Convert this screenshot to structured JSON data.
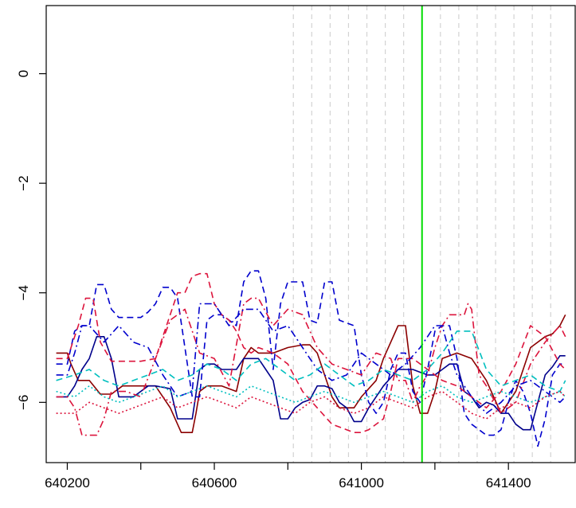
{
  "chart_data": {
    "type": "line",
    "title": "",
    "xlabel": "",
    "ylabel": "",
    "xlim": [
      640160,
      641560
    ],
    "ylim": [
      -7.1,
      1.2
    ],
    "x_ticks": [
      640200,
      640400,
      640600,
      640800,
      641000,
      641200,
      641400,
      641600
    ],
    "x_tick_labels": [
      {
        "value": 640200,
        "label": "640200"
      },
      {
        "value": 640600,
        "label": "640600"
      },
      {
        "value": 641000,
        "label": "641000"
      },
      {
        "value": 641400,
        "label": "641400"
      }
    ],
    "y_ticks": [
      {
        "value": 0,
        "label": "0"
      },
      {
        "value": -2,
        "label": "−2"
      },
      {
        "value": -4,
        "label": "−4"
      },
      {
        "value": -6,
        "label": "−6"
      }
    ],
    "grid": false,
    "reference_lines": {
      "color": "#d3d3d3",
      "x": [
        640815,
        640865,
        640915,
        640965,
        641015,
        641065,
        641115,
        641165,
        641215,
        641265,
        641315,
        641365,
        641415,
        641465,
        641515
      ]
    },
    "highlight_line": {
      "x": 641165,
      "color": "#00dd00"
    },
    "series": [
      {
        "color": "#8b0000",
        "dash": "solid",
        "x": [
          640170,
          640200,
          640210,
          640230,
          640260,
          640290,
          640320,
          640350,
          640400,
          640440,
          640480,
          640510,
          640520,
          640540,
          640550,
          640560,
          640580,
          640620,
          640660,
          640680,
          640700,
          640720,
          640760,
          640800,
          640840,
          640860,
          640880,
          640920,
          640940,
          640980,
          641000,
          641040,
          641060,
          641080,
          641100,
          641120,
          641140,
          641160,
          641180,
          641200,
          641220,
          641260,
          641300,
          641340,
          641380,
          641420,
          641460,
          641500,
          641520,
          641540,
          641555
        ],
        "y": [
          -5.1,
          -5.1,
          -5.3,
          -5.6,
          -5.6,
          -5.85,
          -5.85,
          -5.7,
          -5.7,
          -5.7,
          -6.1,
          -6.55,
          -6.55,
          -6.55,
          -6.2,
          -5.8,
          -5.7,
          -5.7,
          -5.8,
          -5.2,
          -5.0,
          -5.1,
          -5.1,
          -5.0,
          -4.95,
          -4.95,
          -5.1,
          -5.9,
          -6.1,
          -6.1,
          -5.9,
          -5.6,
          -5.2,
          -4.9,
          -4.6,
          -4.6,
          -5.7,
          -6.2,
          -6.2,
          -5.8,
          -5.2,
          -5.1,
          -5.2,
          -5.6,
          -6.2,
          -5.8,
          -5.0,
          -4.8,
          -4.75,
          -4.6,
          -4.4
        ]
      },
      {
        "color": "#00008b",
        "dash": "solid",
        "x": [
          640170,
          640200,
          640220,
          640240,
          640260,
          640280,
          640300,
          640320,
          640340,
          640380,
          640420,
          640440,
          640480,
          640500,
          640520,
          640540,
          640560,
          640580,
          640600,
          640620,
          640640,
          640660,
          640680,
          640720,
          640740,
          640760,
          640780,
          640800,
          640820,
          640840,
          640860,
          640880,
          640900,
          640920,
          640940,
          640960,
          640980,
          641000,
          641020,
          641060,
          641100,
          641140,
          641160,
          641180,
          641200,
          641220,
          641240,
          641260,
          641280,
          641300,
          641320,
          641340,
          641360,
          641380,
          641400,
          641420,
          641440,
          641460,
          641480,
          641500,
          641520,
          641540,
          641555
        ],
        "y": [
          -5.9,
          -5.9,
          -5.7,
          -5.4,
          -5.2,
          -4.8,
          -4.8,
          -5.2,
          -5.9,
          -5.9,
          -5.7,
          -5.7,
          -5.75,
          -6.3,
          -6.3,
          -6.3,
          -5.4,
          -5.3,
          -5.3,
          -5.4,
          -5.4,
          -5.4,
          -5.2,
          -5.2,
          -5.4,
          -5.6,
          -6.3,
          -6.3,
          -6.1,
          -6.0,
          -5.95,
          -5.7,
          -5.7,
          -5.75,
          -6.0,
          -6.1,
          -6.35,
          -6.35,
          -6.1,
          -5.7,
          -5.4,
          -5.4,
          -5.45,
          -5.5,
          -5.5,
          -5.4,
          -5.3,
          -5.3,
          -5.8,
          -5.9,
          -6.1,
          -6.0,
          -6.05,
          -6.2,
          -6.2,
          -6.4,
          -6.5,
          -6.5,
          -6.0,
          -5.5,
          -5.35,
          -5.15,
          -5.15
        ]
      },
      {
        "color": "#0000cd",
        "dash": "dashed",
        "x": [
          640170,
          640200,
          640220,
          640240,
          640260,
          640280,
          640300,
          640320,
          640340,
          640400,
          640420,
          640440,
          640460,
          640480,
          640500,
          640520,
          640540,
          640560,
          640580,
          640600,
          640620,
          640660,
          640680,
          640700,
          640720,
          640740,
          640760,
          640780,
          640800,
          640820,
          640840,
          640860,
          640880,
          640900,
          640920,
          640940,
          640960,
          640980,
          641000,
          641020,
          641040,
          641060,
          641080,
          641100,
          641120,
          641140,
          641160,
          641180,
          641200,
          641220,
          641240,
          641260,
          641280,
          641300,
          641320,
          641340,
          641360,
          641380,
          641400,
          641420,
          641440,
          641460,
          641480,
          641500,
          641520,
          641540,
          641555
        ],
        "y": [
          -5.3,
          -5.3,
          -4.7,
          -4.6,
          -4.6,
          -3.85,
          -3.85,
          -4.3,
          -4.45,
          -4.45,
          -4.35,
          -4.2,
          -3.9,
          -3.9,
          -4.1,
          -5.0,
          -5.9,
          -5.9,
          -4.5,
          -4.4,
          -4.4,
          -4.6,
          -3.8,
          -3.6,
          -3.6,
          -4.1,
          -5.4,
          -4.2,
          -3.8,
          -3.8,
          -3.8,
          -4.5,
          -4.55,
          -3.8,
          -3.8,
          -4.5,
          -4.55,
          -4.6,
          -5.5,
          -6.0,
          -6.2,
          -6.0,
          -5.4,
          -5.1,
          -5.1,
          -5.8,
          -6.0,
          -5.4,
          -4.7,
          -4.6,
          -4.6,
          -5.2,
          -6.2,
          -6.4,
          -6.5,
          -6.6,
          -6.6,
          -6.5,
          -6.0,
          -5.6,
          -5.8,
          -6.2,
          -6.8,
          -6.3,
          -5.5,
          -5.3,
          -5.3
        ]
      },
      {
        "color": "#dc143c",
        "dash": "dashed",
        "x": [
          640170,
          640200,
          640230,
          640250,
          640270,
          640290,
          640320,
          640360,
          640400,
          640440,
          640470,
          640500,
          640520,
          640540,
          640560,
          640580,
          640600,
          640620,
          640640,
          640660,
          640680,
          640700,
          640720,
          640760,
          640800,
          640840,
          640880,
          640920,
          640960,
          640980,
          641000,
          641020,
          641060,
          641080,
          641100,
          641140,
          641180,
          641220,
          641260,
          641300,
          641340,
          641380,
          641420,
          641460,
          641500,
          641540,
          641555
        ],
        "y": [
          -5.2,
          -5.2,
          -4.6,
          -4.1,
          -4.1,
          -4.9,
          -5.25,
          -5.25,
          -5.25,
          -5.2,
          -4.6,
          -4.0,
          -4.0,
          -3.7,
          -3.65,
          -3.65,
          -4.2,
          -4.4,
          -4.5,
          -4.7,
          -5.0,
          -5.1,
          -5.0,
          -5.1,
          -5.3,
          -5.8,
          -6.1,
          -6.4,
          -6.5,
          -6.55,
          -6.55,
          -6.5,
          -6.3,
          -5.8,
          -5.2,
          -5.2,
          -5.4,
          -5.6,
          -5.7,
          -5.9,
          -6.1,
          -5.8,
          -5.3,
          -4.6,
          -4.8,
          -5.3,
          -5.4
        ]
      },
      {
        "color": "#dc143c",
        "dash": "dashdot",
        "x": [
          640170,
          640200,
          640220,
          640240,
          640260,
          640280,
          640300,
          640320,
          640360,
          640400,
          640440,
          640480,
          640520,
          640560,
          640600,
          640640,
          640680,
          640700,
          640720,
          640760,
          640800,
          640840,
          640880,
          640920,
          640960,
          641000,
          641040,
          641080,
          641100,
          641120,
          641140,
          641160,
          641180,
          641200,
          641220,
          641240,
          641260,
          641280,
          641290,
          641300,
          641320,
          641340,
          641380,
          641420,
          641460,
          641500,
          641540,
          641555
        ],
        "y": [
          -5.9,
          -5.9,
          -6.1,
          -6.6,
          -6.6,
          -6.6,
          -6.3,
          -5.8,
          -5.8,
          -5.9,
          -5.2,
          -4.5,
          -4.3,
          -5.1,
          -5.2,
          -5.7,
          -4.2,
          -4.1,
          -4.1,
          -4.6,
          -4.3,
          -4.4,
          -5.0,
          -5.3,
          -5.4,
          -5.5,
          -5.1,
          -5.2,
          -5.6,
          -5.6,
          -6.0,
          -5.7,
          -5.5,
          -5.0,
          -4.6,
          -4.4,
          -4.4,
          -4.4,
          -4.2,
          -4.3,
          -5.5,
          -5.7,
          -6.2,
          -6.0,
          -5.3,
          -4.9,
          -4.6,
          -4.8
        ]
      },
      {
        "color": "#0000cd",
        "dash": "dashdot",
        "x": [
          640170,
          640200,
          640220,
          640240,
          640260,
          640300,
          640340,
          640380,
          640420,
          640460,
          640500,
          640540,
          640560,
          640600,
          640640,
          640680,
          640720,
          640760,
          640800,
          640840,
          640880,
          640920,
          640960,
          641000,
          641040,
          641080,
          641120,
          641160,
          641200,
          641220,
          641240,
          641260,
          641300,
          641340,
          641380,
          641420,
          641460,
          641500,
          641540,
          641555
        ],
        "y": [
          -5.5,
          -5.5,
          -5.1,
          -4.6,
          -4.6,
          -4.9,
          -4.6,
          -4.9,
          -5.0,
          -5.5,
          -5.9,
          -5.8,
          -4.2,
          -4.2,
          -4.6,
          -4.3,
          -4.3,
          -4.7,
          -4.6,
          -5.0,
          -5.4,
          -5.6,
          -5.5,
          -5.1,
          -5.3,
          -5.5,
          -5.3,
          -5.0,
          -4.6,
          -4.6,
          -5.1,
          -5.5,
          -5.9,
          -6.2,
          -6.0,
          -5.7,
          -5.6,
          -5.8,
          -6.0,
          -5.9
        ]
      },
      {
        "color": "#00bfbf",
        "dash": "dashed",
        "x": [
          640170,
          640220,
          640260,
          640300,
          640340,
          640380,
          640420,
          640460,
          640500,
          640540,
          640580,
          640620,
          640660,
          640700,
          640740,
          640780,
          640820,
          640860,
          640900,
          640940,
          640980,
          641020,
          641060,
          641100,
          641140,
          641180,
          641220,
          641260,
          641300,
          641340,
          641380,
          641420,
          641460,
          641500,
          641540,
          641555
        ],
        "y": [
          -5.6,
          -5.5,
          -5.4,
          -5.6,
          -5.7,
          -5.6,
          -5.5,
          -5.4,
          -5.6,
          -5.5,
          -5.3,
          -5.4,
          -5.6,
          -5.3,
          -5.2,
          -5.4,
          -5.6,
          -5.5,
          -5.3,
          -5.5,
          -5.7,
          -5.6,
          -5.4,
          -5.5,
          -5.6,
          -5.4,
          -5.1,
          -4.7,
          -4.7,
          -5.4,
          -5.7,
          -5.6,
          -5.5,
          -5.7,
          -5.8,
          -5.6
        ]
      },
      {
        "color": "#00bfbf",
        "dash": "dotted",
        "x": [
          640170,
          640220,
          640260,
          640300,
          640340,
          640380,
          640420,
          640460,
          640500,
          640540,
          640580,
          640620,
          640660,
          640700,
          640740,
          640780,
          640820,
          640860,
          640900,
          640940,
          640980,
          641020,
          641060,
          641100,
          641140,
          641180,
          641220,
          641260,
          641300,
          641340,
          641380,
          641420,
          641460,
          641500,
          641540,
          641555
        ],
        "y": [
          -5.8,
          -5.9,
          -5.7,
          -5.9,
          -6.0,
          -5.9,
          -5.8,
          -5.7,
          -5.9,
          -5.8,
          -5.7,
          -5.8,
          -5.9,
          -5.7,
          -5.8,
          -5.9,
          -6.0,
          -5.9,
          -5.8,
          -5.9,
          -6.0,
          -5.9,
          -5.8,
          -5.9,
          -6.0,
          -5.8,
          -5.7,
          -5.9,
          -6.0,
          -5.9,
          -5.8,
          -5.9,
          -6.0,
          -5.9,
          -5.8,
          -5.9
        ]
      },
      {
        "color": "#dc143c",
        "dash": "dotted",
        "x": [
          640170,
          640220,
          640260,
          640300,
          640340,
          640380,
          640420,
          640460,
          640500,
          640540,
          640580,
          640620,
          640660,
          640700,
          640740,
          640780,
          640820,
          640860,
          640900,
          640940,
          640980,
          641020,
          641060,
          641100,
          641140,
          641180,
          641220,
          641260,
          641300,
          641340,
          641380,
          641420,
          641460,
          641500,
          641540,
          641555
        ],
        "y": [
          -6.2,
          -6.2,
          -6.0,
          -6.1,
          -6.2,
          -6.1,
          -6.0,
          -5.9,
          -6.1,
          -6.0,
          -5.9,
          -6.0,
          -6.1,
          -5.9,
          -6.0,
          -6.1,
          -6.2,
          -6.0,
          -5.9,
          -6.1,
          -6.2,
          -6.1,
          -5.9,
          -6.0,
          -6.1,
          -5.9,
          -5.8,
          -6.0,
          -6.2,
          -6.3,
          -6.1,
          -6.0,
          -6.1,
          -5.9,
          -5.8,
          -5.9
        ]
      }
    ]
  }
}
